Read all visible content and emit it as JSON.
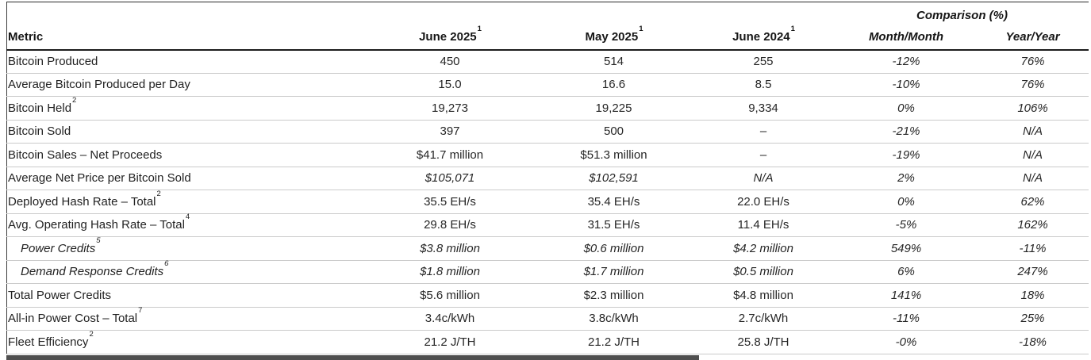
{
  "table": {
    "comparison_header": "Comparison (%)",
    "columns": [
      {
        "label": "Metric",
        "sup": ""
      },
      {
        "label": "June 2025",
        "sup": "1"
      },
      {
        "label": "May 2025",
        "sup": "1"
      },
      {
        "label": "June 2024",
        "sup": "1"
      },
      {
        "label": "Month/Month",
        "sup": ""
      },
      {
        "label": "Year/Year",
        "sup": ""
      }
    ],
    "rows": [
      {
        "label": "Bitcoin Produced",
        "sup": "",
        "indent": false,
        "label_italic": false,
        "values_italic": false,
        "values": [
          "450",
          "514",
          "255",
          "-12%",
          "76%"
        ]
      },
      {
        "label": "Average Bitcoin Produced per Day",
        "sup": "",
        "indent": false,
        "label_italic": false,
        "values_italic": false,
        "values": [
          "15.0",
          "16.6",
          "8.5",
          "-10%",
          "76%"
        ]
      },
      {
        "label": "Bitcoin Held",
        "sup": "2",
        "indent": false,
        "label_italic": false,
        "values_italic": false,
        "values": [
          "19,273",
          "19,225",
          "9,334",
          "0%",
          "106%"
        ]
      },
      {
        "label": "Bitcoin Sold",
        "sup": "",
        "indent": false,
        "label_italic": false,
        "values_italic": false,
        "values": [
          "397",
          "500",
          "–",
          "-21%",
          "N/A"
        ]
      },
      {
        "label": "Bitcoin Sales – Net Proceeds",
        "sup": "",
        "indent": false,
        "label_italic": false,
        "values_italic": false,
        "values": [
          "$41.7 million",
          "$51.3 million",
          "–",
          "-19%",
          "N/A"
        ]
      },
      {
        "label": "Average Net Price per Bitcoin Sold",
        "sup": "",
        "indent": false,
        "label_italic": false,
        "values_italic": true,
        "values": [
          "$105,071",
          "$102,591",
          "N/A",
          "2%",
          "N/A"
        ]
      },
      {
        "label": "Deployed Hash Rate – Total",
        "sup": "2",
        "indent": false,
        "label_italic": false,
        "values_italic": false,
        "values": [
          "35.5 EH/s",
          "35.4 EH/s",
          "22.0 EH/s",
          "0%",
          "62%"
        ]
      },
      {
        "label": "Avg. Operating Hash Rate – Total",
        "sup": "4",
        "indent": false,
        "label_italic": false,
        "values_italic": false,
        "values": [
          "29.8 EH/s",
          "31.5 EH/s",
          "11.4 EH/s",
          "-5%",
          "162%"
        ]
      },
      {
        "label": "Power Credits",
        "sup": "5",
        "indent": true,
        "label_italic": true,
        "values_italic": true,
        "values": [
          "$3.8 million",
          "$0.6 million",
          "$4.2 million",
          "549%",
          "-11%"
        ]
      },
      {
        "label": "Demand Response Credits",
        "sup": "6",
        "indent": true,
        "label_italic": true,
        "values_italic": true,
        "values": [
          "$1.8 million",
          "$1.7 million",
          "$0.5 million",
          "6%",
          "247%"
        ]
      },
      {
        "label": "Total Power Credits",
        "sup": "",
        "indent": false,
        "label_italic": false,
        "values_italic": false,
        "values": [
          "$5.6 million",
          "$2.3 million",
          "$4.8 million",
          "141%",
          "18%"
        ]
      },
      {
        "label": "All-in Power Cost – Total",
        "sup": "7",
        "indent": false,
        "label_italic": false,
        "values_italic": false,
        "values": [
          "3.4c/kWh",
          "3.8c/kWh",
          "2.7c/kWh",
          "-11%",
          "25%"
        ]
      },
      {
        "label": "Fleet Efficiency",
        "sup": "2",
        "indent": false,
        "label_italic": false,
        "values_italic": false,
        "values": [
          "21.2 J/TH",
          "21.2 J/TH",
          "25.8 J/TH",
          "-0%",
          "-18%"
        ]
      }
    ]
  },
  "colors": {
    "header_underline": "#1c1c1c",
    "top_rule": "#2a2a2a",
    "row_divider": "#cbcbcb",
    "text": "#262626",
    "bottom_bar": "#4f4f4f"
  }
}
